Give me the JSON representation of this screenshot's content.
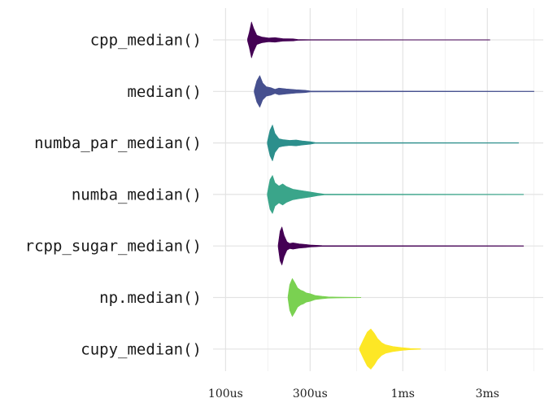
{
  "chart_data": {
    "type": "violin",
    "title": "",
    "xlabel": "",
    "ylabel": "",
    "x_scale": "log",
    "x_unit": "seconds",
    "xlim": [
      8.5e-05,
      0.0062
    ],
    "x_ticks": [
      {
        "value": 0.0001,
        "label": "100us"
      },
      {
        "value": 0.0003,
        "label": "300us"
      },
      {
        "value": 0.001,
        "label": "1ms"
      },
      {
        "value": 0.003,
        "label": "3ms"
      }
    ],
    "grid": true,
    "legend": "none",
    "series": [
      {
        "label": "cpp_median()",
        "color": "#440154",
        "min": 0.000133,
        "max": 0.0031,
        "density": [
          [
            0.000133,
            0.05
          ],
          [
            0.000136,
            0.35
          ],
          [
            0.00014,
            0.85
          ],
          [
            0.000144,
            0.55
          ],
          [
            0.00015,
            0.22
          ],
          [
            0.00016,
            0.14
          ],
          [
            0.000175,
            0.09
          ],
          [
            0.00019,
            0.11
          ],
          [
            0.00021,
            0.06
          ],
          [
            0.00024,
            0.05
          ],
          [
            0.000255,
            0.02
          ],
          [
            0.0003,
            0.012
          ],
          [
            0.0031,
            0.008
          ]
        ]
      },
      {
        "label": "median()",
        "color": "#46508f",
        "min": 0.000145,
        "max": 0.0055,
        "density": [
          [
            0.000145,
            0.05
          ],
          [
            0.00015,
            0.5
          ],
          [
            0.000156,
            0.75
          ],
          [
            0.000162,
            0.4
          ],
          [
            0.00017,
            0.22
          ],
          [
            0.00018,
            0.18
          ],
          [
            0.00019,
            0.1
          ],
          [
            0.0002,
            0.16
          ],
          [
            0.00022,
            0.12
          ],
          [
            0.00025,
            0.08
          ],
          [
            0.00028,
            0.06
          ],
          [
            0.0003,
            0.025
          ],
          [
            0.0005,
            0.018
          ],
          [
            0.0055,
            0.01
          ]
        ]
      },
      {
        "label": "numba_par_median()",
        "color": "#2c8f8c",
        "min": 0.000172,
        "max": 0.0045,
        "density": [
          [
            0.000172,
            0.05
          ],
          [
            0.000178,
            0.6
          ],
          [
            0.000184,
            0.85
          ],
          [
            0.00019,
            0.45
          ],
          [
            0.0002,
            0.2
          ],
          [
            0.00021,
            0.16
          ],
          [
            0.00023,
            0.12
          ],
          [
            0.00025,
            0.14
          ],
          [
            0.00027,
            0.1
          ],
          [
            0.0003,
            0.06
          ],
          [
            0.00032,
            0.02
          ],
          [
            0.0045,
            0.01
          ]
        ]
      },
      {
        "label": "numba_median()",
        "color": "#3aa58a",
        "min": 0.000172,
        "max": 0.0048,
        "density": [
          [
            0.000172,
            0.05
          ],
          [
            0.000178,
            0.7
          ],
          [
            0.000184,
            0.9
          ],
          [
            0.00019,
            0.55
          ],
          [
            0.0002,
            0.4
          ],
          [
            0.00021,
            0.5
          ],
          [
            0.00022,
            0.38
          ],
          [
            0.00024,
            0.25
          ],
          [
            0.00026,
            0.2
          ],
          [
            0.00028,
            0.16
          ],
          [
            0.0003,
            0.12
          ],
          [
            0.00033,
            0.06
          ],
          [
            0.00036,
            0.02
          ],
          [
            0.0048,
            0.01
          ]
        ]
      },
      {
        "label": "rcpp_sugar_median()",
        "color": "#440154",
        "min": 0.000198,
        "max": 0.0048,
        "density": [
          [
            0.000198,
            0.05
          ],
          [
            0.000203,
            0.7
          ],
          [
            0.000208,
            0.9
          ],
          [
            0.000214,
            0.5
          ],
          [
            0.000222,
            0.2
          ],
          [
            0.00023,
            0.12
          ],
          [
            0.00024,
            0.15
          ],
          [
            0.00026,
            0.1
          ],
          [
            0.00028,
            0.08
          ],
          [
            0.0003,
            0.05
          ],
          [
            0.00035,
            0.02
          ],
          [
            0.0048,
            0.01
          ]
        ]
      },
      {
        "label": "np.median()",
        "color": "#7ad151",
        "min": 0.000225,
        "max": 0.00058,
        "density": [
          [
            0.000225,
            0.05
          ],
          [
            0.00023,
            0.6
          ],
          [
            0.000238,
            0.9
          ],
          [
            0.000246,
            0.7
          ],
          [
            0.000255,
            0.45
          ],
          [
            0.000265,
            0.35
          ],
          [
            0.000275,
            0.3
          ],
          [
            0.000285,
            0.22
          ],
          [
            0.0003,
            0.18
          ],
          [
            0.00032,
            0.1
          ],
          [
            0.00035,
            0.06
          ],
          [
            0.00038,
            0.03
          ],
          [
            0.00042,
            0.02
          ],
          [
            0.00058,
            0.01
          ]
        ]
      },
      {
        "label": "cupy_median()",
        "color": "#fde725",
        "min": 0.00057,
        "max": 0.00126,
        "density": [
          [
            0.00057,
            0.05
          ],
          [
            0.0006,
            0.45
          ],
          [
            0.00063,
            0.8
          ],
          [
            0.00066,
            0.95
          ],
          [
            0.00069,
            0.75
          ],
          [
            0.00072,
            0.5
          ],
          [
            0.00076,
            0.3
          ],
          [
            0.0008,
            0.2
          ],
          [
            0.00088,
            0.12
          ],
          [
            0.00098,
            0.07
          ],
          [
            0.0011,
            0.03
          ],
          [
            0.00126,
            0.01
          ]
        ]
      }
    ]
  }
}
